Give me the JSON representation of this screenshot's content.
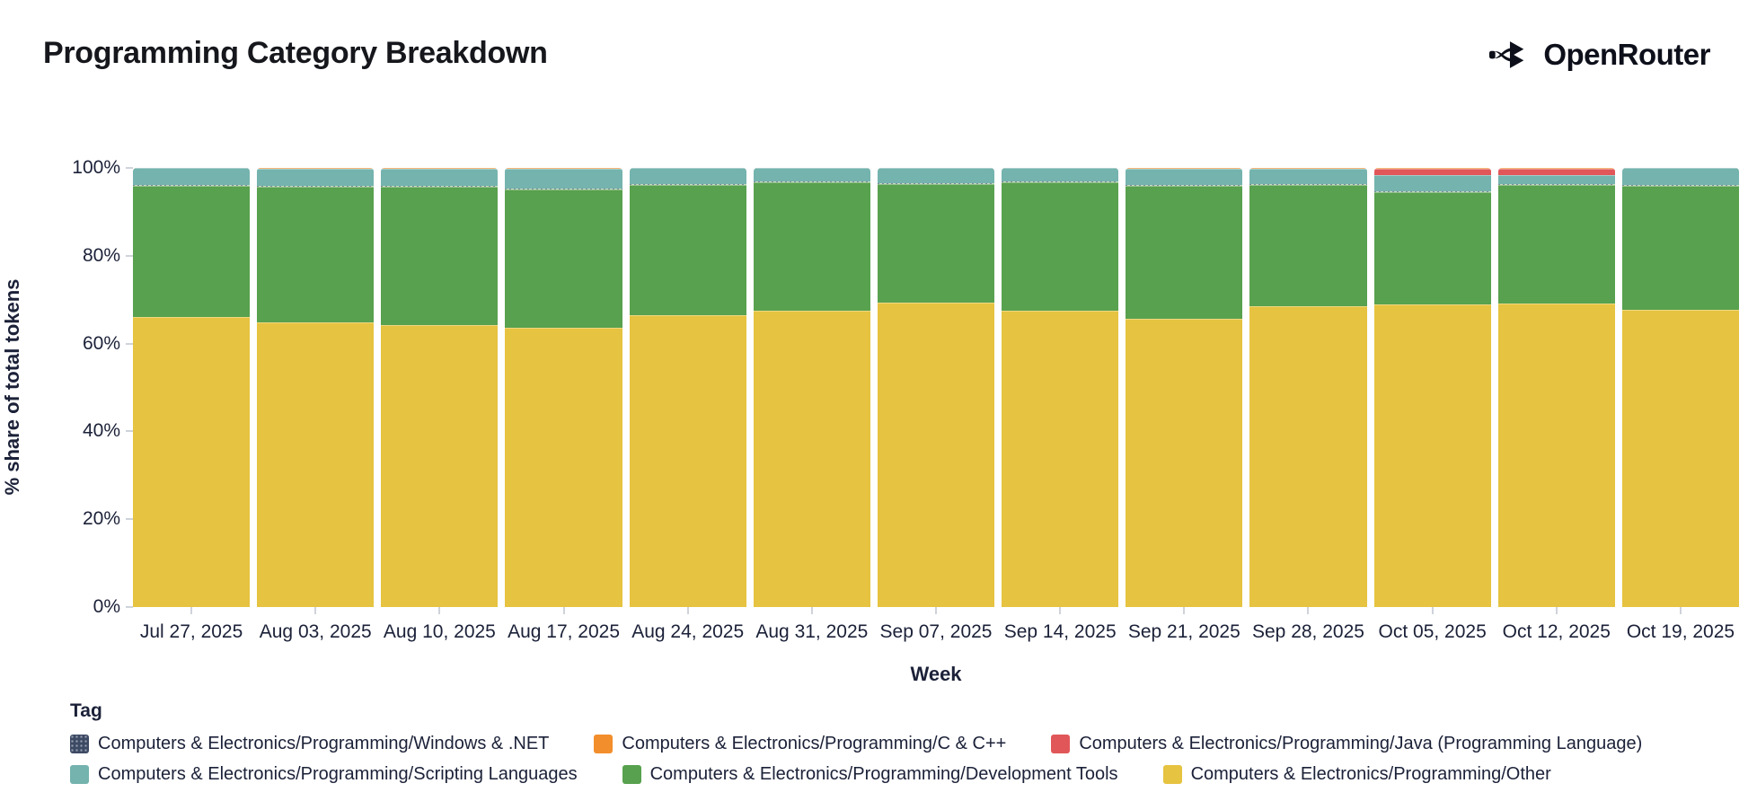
{
  "page": {
    "title": "Programming Category Breakdown",
    "brand": {
      "name": "OpenRouter",
      "icon": "openrouter-branch-arrows",
      "color": "#0D0F1A"
    }
  },
  "chart_data": {
    "type": "bar",
    "stacked": true,
    "normalized_percent": true,
    "title": "Programming Category Breakdown",
    "xlabel": "Week",
    "ylabel": "% share of total tokens",
    "ylim": [
      0,
      100
    ],
    "grid": false,
    "legend_title": "Tag",
    "legend_position": "bottom",
    "y_ticks": [
      "0%",
      "20%",
      "40%",
      "60%",
      "80%",
      "100%"
    ],
    "y_tick_values": [
      0,
      20,
      40,
      60,
      80,
      100
    ],
    "categories": [
      "Jul 27, 2025",
      "Aug 03, 2025",
      "Aug 10, 2025",
      "Aug 17, 2025",
      "Aug 24, 2025",
      "Aug 31, 2025",
      "Sep 07, 2025",
      "Sep 14, 2025",
      "Sep 21, 2025",
      "Sep 28, 2025",
      "Oct 05, 2025",
      "Oct 12, 2025",
      "Oct 19, 2025"
    ],
    "series": [
      {
        "name": "Computers & Electronics/Programming/Other",
        "short": "Other",
        "color": "#E6C340",
        "pattern": "solid",
        "values": [
          66.0,
          64.8,
          64.3,
          63.5,
          66.4,
          67.5,
          69.3,
          67.4,
          65.7,
          68.4,
          68.9,
          69.1,
          67.6
        ]
      },
      {
        "name": "Computers & Electronics/Programming/Development Tools",
        "short": "Development Tools",
        "color": "#58A14E",
        "pattern": "solid",
        "values": [
          29.9,
          30.9,
          31.4,
          31.6,
          29.7,
          29.3,
          27.1,
          29.3,
          30.2,
          27.7,
          25.5,
          27.1,
          28.3
        ]
      },
      {
        "name": "Computers & Electronics/Programming/Windows & .NET",
        "short": "Windows & .NET",
        "color": "#3D4A63",
        "pattern": "dotted",
        "values": [
          0.2,
          0.2,
          0.2,
          0.2,
          0.2,
          0.2,
          0.2,
          0.2,
          0.2,
          0.2,
          0.2,
          0.2,
          0.2
        ]
      },
      {
        "name": "Computers & Electronics/Programming/Scripting Languages",
        "short": "Scripting Languages",
        "color": "#74B3AE",
        "pattern": "solid",
        "values": [
          3.8,
          3.8,
          3.8,
          4.5,
          3.6,
          2.9,
          3.3,
          3.0,
          3.6,
          3.4,
          3.8,
          1.9,
          3.8
        ]
      },
      {
        "name": "Computers & Electronics/Programming/Java (Programming Language)",
        "short": "Java (Programming Language)",
        "color": "#E15759",
        "pattern": "solid",
        "values": [
          0,
          0,
          0,
          0,
          0,
          0,
          0,
          0,
          0,
          0,
          1.4,
          1.5,
          0
        ]
      },
      {
        "name": "Computers & Electronics/Programming/C & C++",
        "short": "C & C++",
        "color": "#F28E2B",
        "pattern": "solid",
        "values": [
          0.1,
          0.3,
          0.3,
          0.2,
          0.1,
          0.1,
          0.1,
          0.1,
          0.3,
          0.3,
          0.2,
          0.2,
          0.1
        ]
      }
    ],
    "legend_rows": [
      [
        2,
        5,
        4
      ],
      [
        3,
        1,
        0
      ]
    ]
  }
}
